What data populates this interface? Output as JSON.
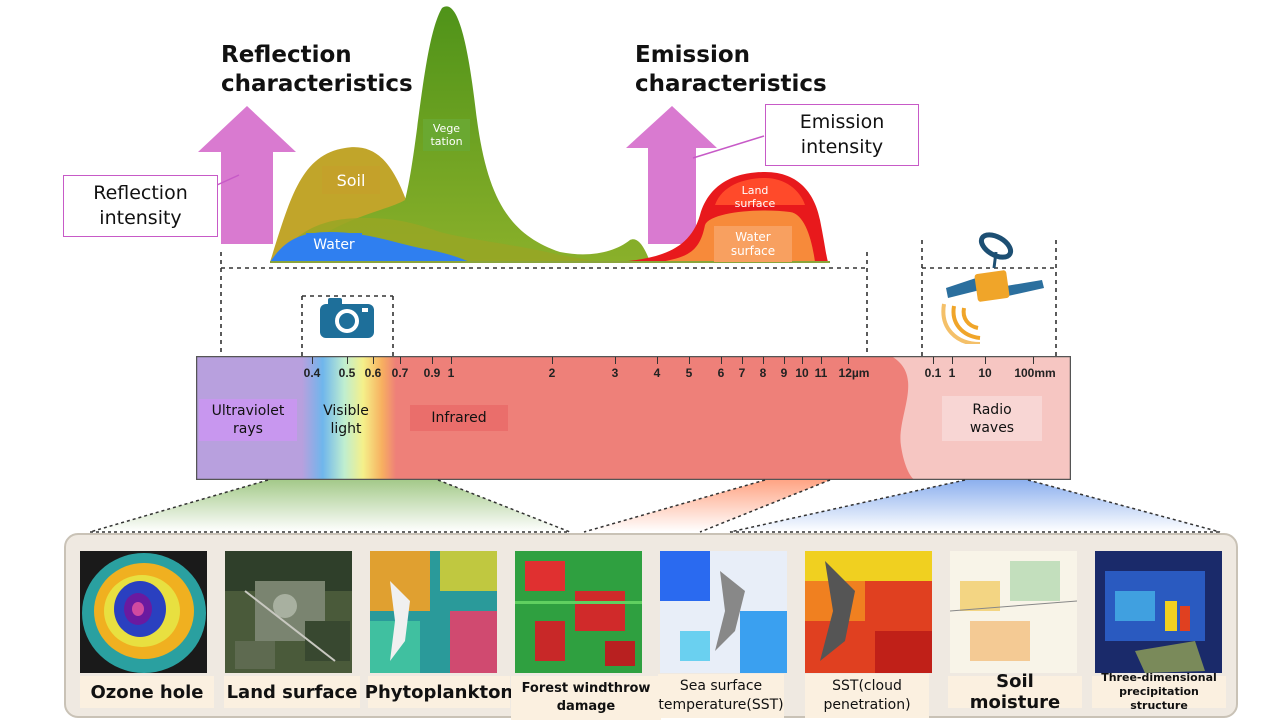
{
  "reflection": {
    "title": "Reflection\ncharacteristics",
    "intensity_label": "Reflection\nintensity",
    "peaks": {
      "soil": "Soil",
      "vegetation": "Vege\ntation",
      "water": "Water"
    }
  },
  "emission": {
    "title": "Emission\ncharacteristics",
    "intensity_label": "Emission\nintensity",
    "peaks": {
      "land": "Land\nsurface",
      "water": "Water\nsurface"
    }
  },
  "spectrum": {
    "ticks_optical": [
      "0.4",
      "0.5",
      "0.6",
      "0.7",
      "0.9",
      "1",
      "2",
      "3",
      "4",
      "5",
      "6",
      "7",
      "8",
      "9",
      "10",
      "11",
      "12µm"
    ],
    "ticks_radio": [
      "0.1",
      "1",
      "10",
      "100mm"
    ],
    "bands": {
      "ultraviolet": "Ultraviolet\nrays",
      "visible": "Visible\nlight",
      "infrared": "Infrared",
      "radio": "Radio\nwaves"
    }
  },
  "applications": [
    {
      "caption": "Ozone hole"
    },
    {
      "caption": "Land surface"
    },
    {
      "caption": "Phytoplankton"
    },
    {
      "caption": "Forest windthrow\ndamage"
    },
    {
      "caption": "Sea surface\ntemperature(SST)"
    },
    {
      "caption": "SST(cloud\npenetration)"
    },
    {
      "caption": "Soil moisture"
    },
    {
      "caption": "Three-dimensional\nprecipitation structure"
    }
  ],
  "icons": {
    "camera": "camera-icon",
    "satellite": "satellite-icon"
  },
  "colors": {
    "arrow": "#d97ad0",
    "vegetation": "#5e9a1e",
    "soil": "#c1a52a",
    "water": "#2f7ff0",
    "land_emission": "#e8191c",
    "water_emission": "#f78a3a",
    "ultraviolet": "#b8a0de",
    "infrared": "#ee8079",
    "radio": "#f6c6c2"
  }
}
